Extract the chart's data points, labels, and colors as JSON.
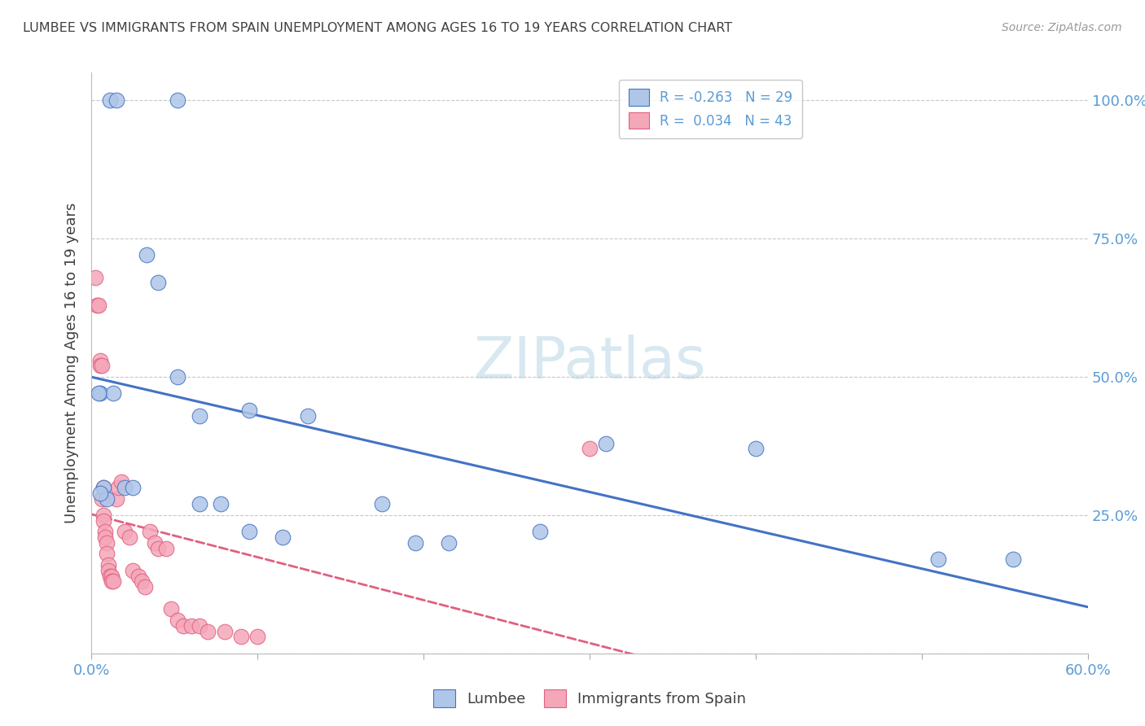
{
  "title": "LUMBEE VS IMMIGRANTS FROM SPAIN UNEMPLOYMENT AMONG AGES 16 TO 19 YEARS CORRELATION CHART",
  "source": "Source: ZipAtlas.com",
  "ylabel": "Unemployment Among Ages 16 to 19 years",
  "xlim": [
    0.0,
    0.6
  ],
  "ylim": [
    0.0,
    1.05
  ],
  "ytick_vals": [
    0.0,
    0.25,
    0.5,
    0.75,
    1.0
  ],
  "ytick_labels": [
    "",
    "25.0%",
    "50.0%",
    "75.0%",
    "100.0%"
  ],
  "xtick_vals": [
    0.0,
    0.1,
    0.2,
    0.3,
    0.4,
    0.5,
    0.6
  ],
  "xtick_labels": [
    "0.0%",
    "",
    "",
    "",
    "",
    "",
    "60.0%"
  ],
  "lumbee_R": "-0.263",
  "lumbee_N": "29",
  "spain_R": "0.034",
  "spain_N": "43",
  "lumbee_color": "#aec6e8",
  "spain_color": "#f4a7b9",
  "lumbee_line_color": "#4472c4",
  "spain_line_color": "#e06080",
  "grid_color": "#c8c8c8",
  "title_color": "#404040",
  "axis_label_color": "#5b9bd5",
  "lumbee_x": [
    0.011,
    0.015,
    0.052,
    0.005,
    0.007,
    0.009,
    0.013,
    0.02,
    0.033,
    0.04,
    0.052,
    0.065,
    0.078,
    0.065,
    0.095,
    0.095,
    0.115,
    0.13,
    0.175,
    0.195,
    0.215,
    0.27,
    0.31,
    0.4,
    0.51,
    0.555,
    0.004,
    0.005,
    0.025
  ],
  "lumbee_y": [
    1.0,
    1.0,
    1.0,
    0.47,
    0.3,
    0.28,
    0.47,
    0.3,
    0.72,
    0.67,
    0.5,
    0.43,
    0.27,
    0.27,
    0.44,
    0.22,
    0.21,
    0.43,
    0.27,
    0.2,
    0.2,
    0.22,
    0.38,
    0.37,
    0.17,
    0.17,
    0.47,
    0.29,
    0.3
  ],
  "spain_x": [
    0.002,
    0.003,
    0.004,
    0.005,
    0.005,
    0.006,
    0.006,
    0.007,
    0.007,
    0.007,
    0.008,
    0.008,
    0.009,
    0.009,
    0.01,
    0.01,
    0.011,
    0.012,
    0.012,
    0.013,
    0.015,
    0.016,
    0.018,
    0.02,
    0.023,
    0.025,
    0.028,
    0.03,
    0.032,
    0.035,
    0.038,
    0.04,
    0.045,
    0.048,
    0.052,
    0.055,
    0.06,
    0.065,
    0.07,
    0.08,
    0.09,
    0.1,
    0.3
  ],
  "spain_y": [
    0.68,
    0.63,
    0.63,
    0.53,
    0.52,
    0.52,
    0.28,
    0.3,
    0.25,
    0.24,
    0.22,
    0.21,
    0.2,
    0.18,
    0.16,
    0.15,
    0.14,
    0.14,
    0.13,
    0.13,
    0.28,
    0.3,
    0.31,
    0.22,
    0.21,
    0.15,
    0.14,
    0.13,
    0.12,
    0.22,
    0.2,
    0.19,
    0.19,
    0.08,
    0.06,
    0.05,
    0.05,
    0.05,
    0.04,
    0.04,
    0.03,
    0.03,
    0.37
  ],
  "watermark": "ZIPatlas",
  "watermark_color": "#d8e8f0"
}
